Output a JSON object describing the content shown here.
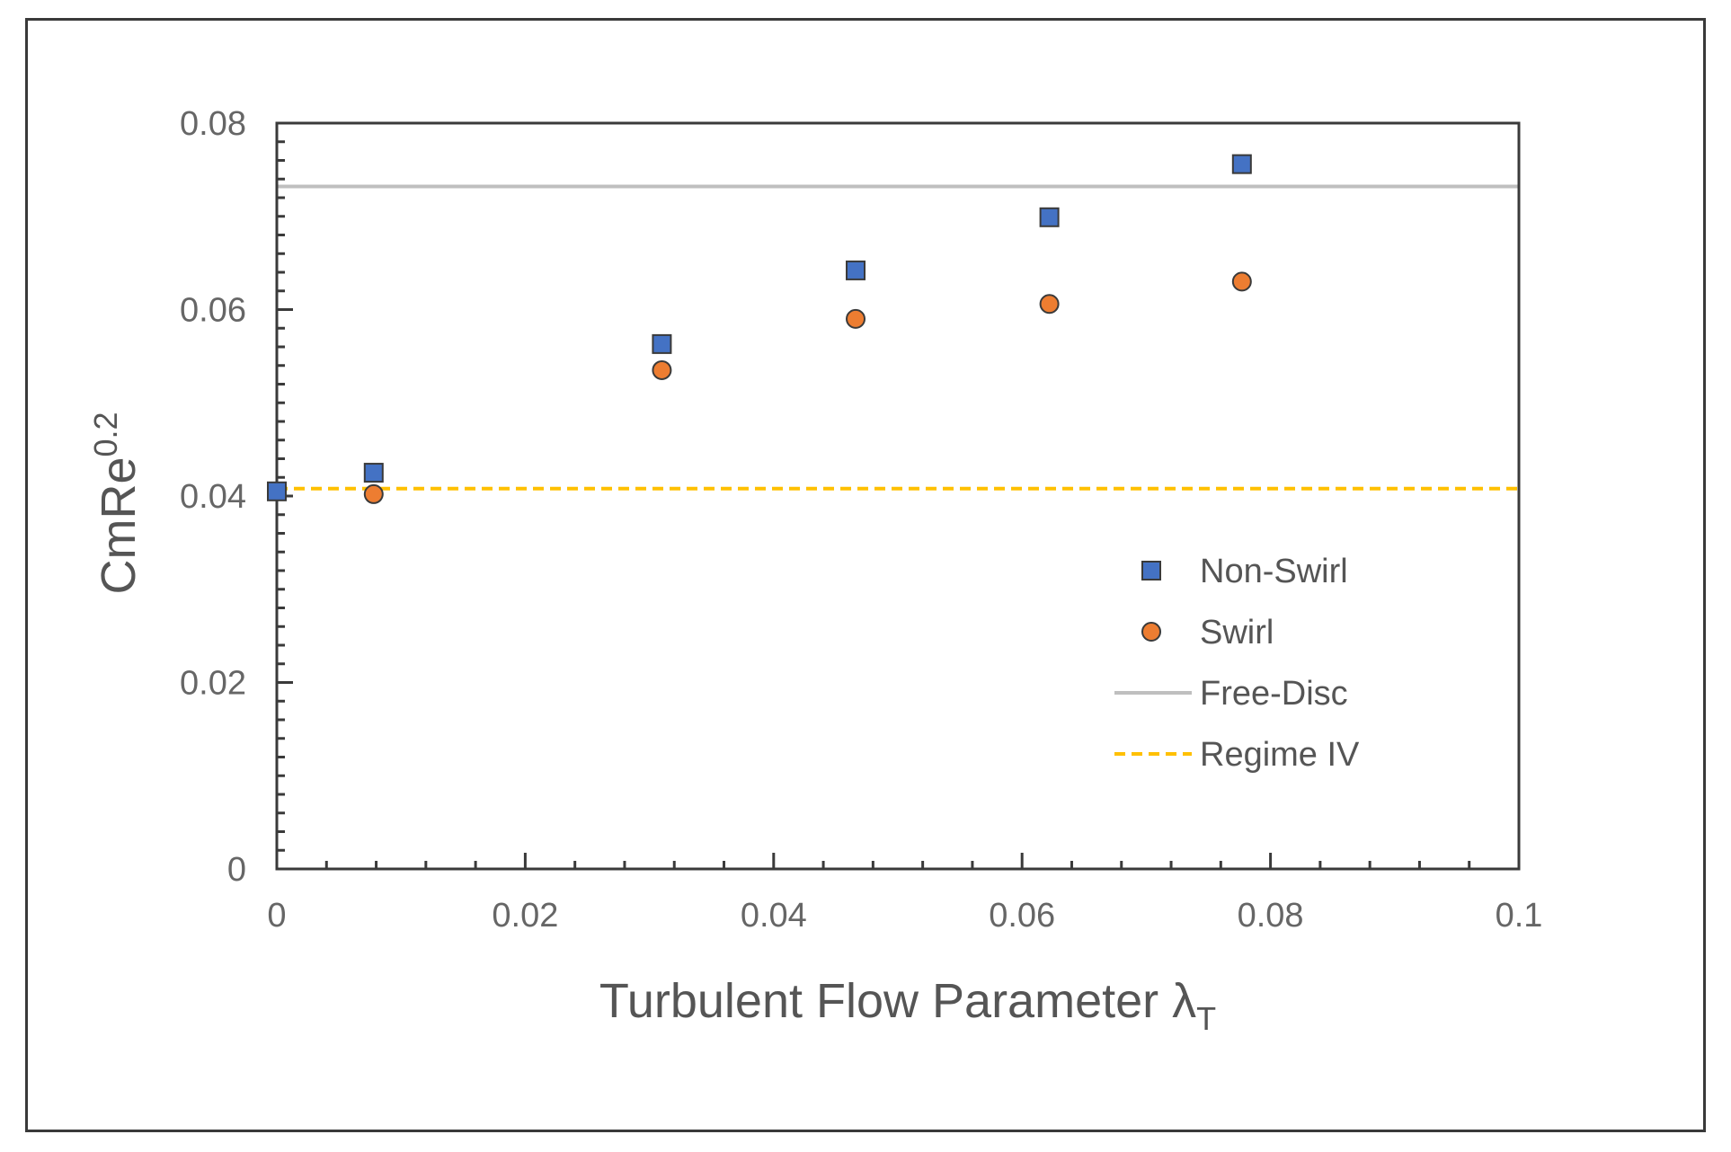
{
  "chart_data": {
    "type": "scatter",
    "title": "",
    "xlabel": "Turbulent Flow Parameter λ",
    "xlabel_sub": "T",
    "ylabel": "CmRe",
    "ylabel_sup": "0.2",
    "xlim": [
      0,
      0.1
    ],
    "ylim": [
      0,
      0.08
    ],
    "xticks": [
      "0",
      "0.02",
      "0.04",
      "0.06",
      "0.08",
      "0.1"
    ],
    "yticks": [
      "0",
      "0.02",
      "0.04",
      "0.06",
      "0.08"
    ],
    "grid": false,
    "legend_position": "right",
    "series": [
      {
        "name": "Non-Swirl",
        "marker": "square",
        "color": "#4472c4",
        "points": [
          {
            "x": 0.0,
            "y": 0.0405
          },
          {
            "x": 0.0078,
            "y": 0.0425
          },
          {
            "x": 0.031,
            "y": 0.0563
          },
          {
            "x": 0.0466,
            "y": 0.0642
          },
          {
            "x": 0.0622,
            "y": 0.0699
          },
          {
            "x": 0.0777,
            "y": 0.0756
          }
        ]
      },
      {
        "name": "Swirl",
        "marker": "circle",
        "color": "#ed7d31",
        "points": [
          {
            "x": 0.0078,
            "y": 0.0402
          },
          {
            "x": 0.031,
            "y": 0.0535
          },
          {
            "x": 0.0466,
            "y": 0.059
          },
          {
            "x": 0.0622,
            "y": 0.0606
          },
          {
            "x": 0.0777,
            "y": 0.063
          }
        ]
      }
    ],
    "reference_lines": [
      {
        "name": "Free-Disc",
        "y": 0.0732,
        "style": "solid",
        "color": "#bfbfbf"
      },
      {
        "name": "Regime IV",
        "y": 0.0408,
        "style": "dashed",
        "color": "#ffc000"
      }
    ]
  }
}
